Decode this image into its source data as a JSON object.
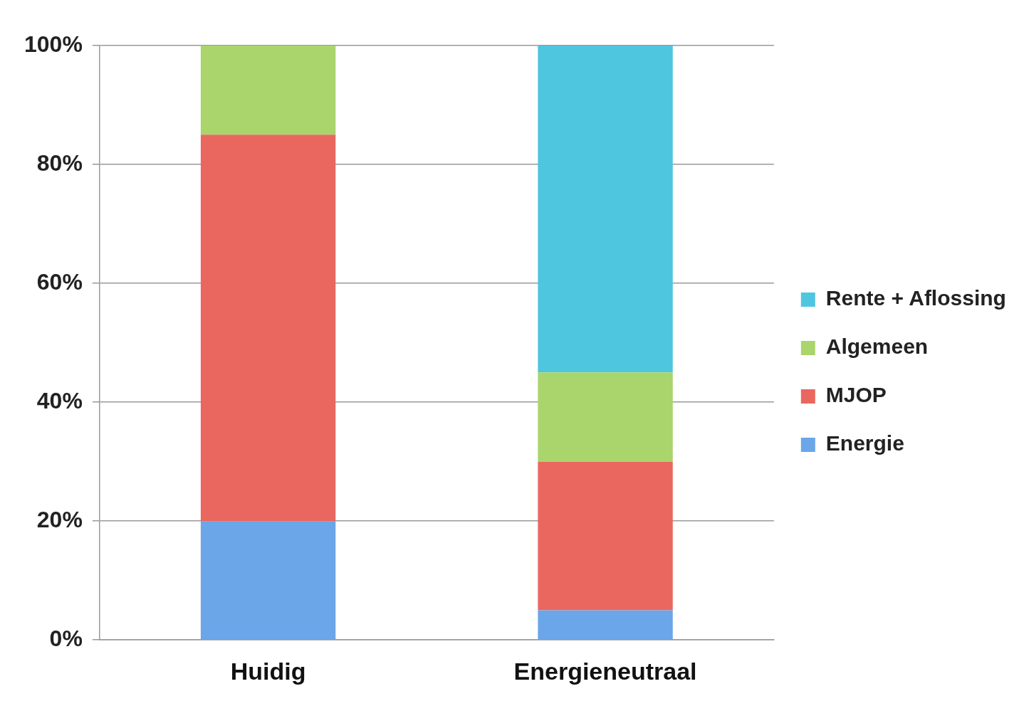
{
  "chart_data": {
    "type": "bar",
    "stacked": true,
    "categories": [
      "Huidig",
      "Energieneutraal"
    ],
    "series": [
      {
        "name": "Energie",
        "color": "#6aa6e8",
        "values": [
          20,
          5
        ]
      },
      {
        "name": "MJOP",
        "color": "#e9675f",
        "values": [
          65,
          25
        ]
      },
      {
        "name": "Algemeen",
        "color": "#a9d56c",
        "values": [
          15,
          15
        ]
      },
      {
        "name": "Rente + Aflossing",
        "color": "#4ec6df",
        "values": [
          0,
          55
        ]
      }
    ],
    "ylim": [
      0,
      100
    ],
    "yticks": [
      {
        "value": 0,
        "label": "0%"
      },
      {
        "value": 20,
        "label": "20%"
      },
      {
        "value": 40,
        "label": "40%"
      },
      {
        "value": 60,
        "label": "60%"
      },
      {
        "value": 80,
        "label": "80%"
      },
      {
        "value": 100,
        "label": "100%"
      }
    ],
    "grid": "y",
    "legend": "right"
  }
}
